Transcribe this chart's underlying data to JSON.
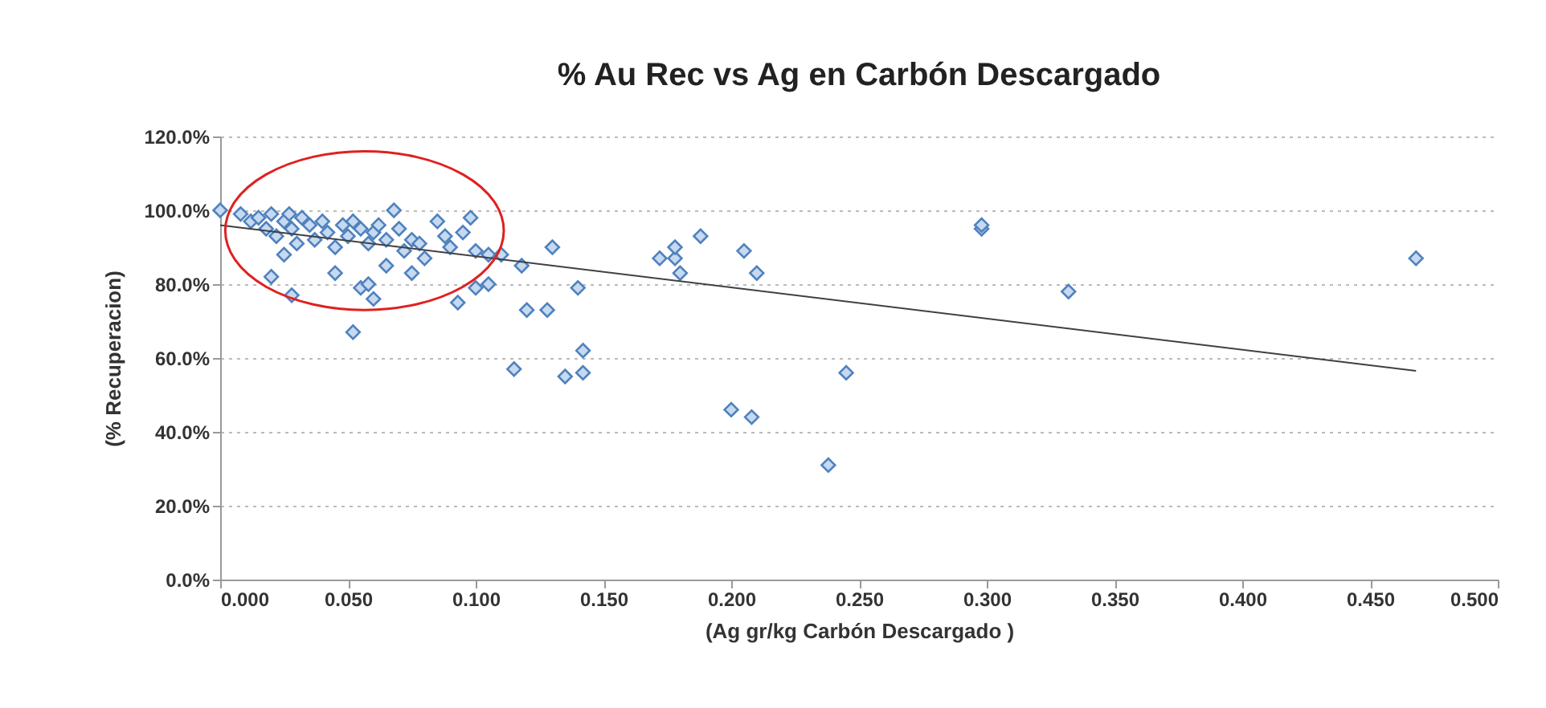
{
  "chart_data": {
    "type": "scatter",
    "title": "% Au Rec vs Ag en Carbón Descargado",
    "xlabel": "(Ag gr/kg Carbón Descargado )",
    "ylabel": "(% Recuperacion)",
    "xlim": [
      0,
      0.5
    ],
    "xticks": [
      {
        "value": 0,
        "label": "0.000"
      },
      {
        "value": 0.05,
        "label": "0.050"
      },
      {
        "value": 0.1,
        "label": "0.100"
      },
      {
        "value": 0.15,
        "label": "0.150"
      },
      {
        "value": 0.2,
        "label": "0.200"
      },
      {
        "value": 0.25,
        "label": "0.250"
      },
      {
        "value": 0.3,
        "label": "0.300"
      },
      {
        "value": 0.35,
        "label": "0.350"
      },
      {
        "value": 0.4,
        "label": "0.400"
      },
      {
        "value": 0.45,
        "label": "0.450"
      },
      {
        "value": 0.5,
        "label": "0.500"
      }
    ],
    "ylim": [
      0,
      120
    ],
    "yticks": [
      {
        "value": 0,
        "label": "0.0%"
      },
      {
        "value": 20,
        "label": "20.0%"
      },
      {
        "value": 40,
        "label": "40.0%"
      },
      {
        "value": 60,
        "label": "60.0%"
      },
      {
        "value": 80,
        "label": "80.0%"
      },
      {
        "value": 100,
        "label": "100.0%"
      },
      {
        "value": 120,
        "label": "120.0%"
      }
    ],
    "grid": "y",
    "marker": "diamond",
    "series": [
      {
        "color": "#4f81bd",
        "x": [
          0.0,
          0.008,
          0.012,
          0.015,
          0.018,
          0.02,
          0.022,
          0.025,
          0.027,
          0.028,
          0.03,
          0.032,
          0.035,
          0.037,
          0.04,
          0.042,
          0.045,
          0.048,
          0.05,
          0.052,
          0.055,
          0.058,
          0.06,
          0.062,
          0.065,
          0.068,
          0.07,
          0.072,
          0.075,
          0.078,
          0.08,
          0.085,
          0.088,
          0.09,
          0.095,
          0.098,
          0.1,
          0.105,
          0.02,
          0.025,
          0.028,
          0.045,
          0.052,
          0.055,
          0.06,
          0.065,
          0.075,
          0.058,
          0.093,
          0.1,
          0.105,
          0.11,
          0.115,
          0.118,
          0.12,
          0.128,
          0.13,
          0.135,
          0.14,
          0.142,
          0.142,
          0.172,
          0.178,
          0.178,
          0.18,
          0.188,
          0.2,
          0.205,
          0.208,
          0.21,
          0.238,
          0.245,
          0.298,
          0.298,
          0.332,
          0.468
        ],
        "values": [
          100,
          99,
          97,
          98,
          95,
          99,
          93,
          97,
          99,
          95,
          91,
          98,
          96,
          92,
          97,
          94,
          90,
          96,
          93,
          97,
          95,
          91,
          94,
          96,
          92,
          100,
          95,
          89,
          92,
          91,
          87,
          97,
          93,
          90,
          94,
          98,
          89,
          88,
          82,
          88,
          77,
          83,
          67,
          79,
          76,
          85,
          83,
          80,
          75,
          79,
          80,
          88,
          57,
          85,
          73,
          73,
          90,
          55,
          79,
          62,
          56,
          87,
          87,
          90,
          83,
          93,
          46,
          89,
          44,
          83,
          31,
          56,
          95,
          96,
          78,
          87
        ]
      },
      {
        "type": "line",
        "color": "#404040",
        "marker": "none",
        "x": [
          0,
          0.468
        ],
        "values": [
          96,
          56.5
        ]
      }
    ]
  }
}
